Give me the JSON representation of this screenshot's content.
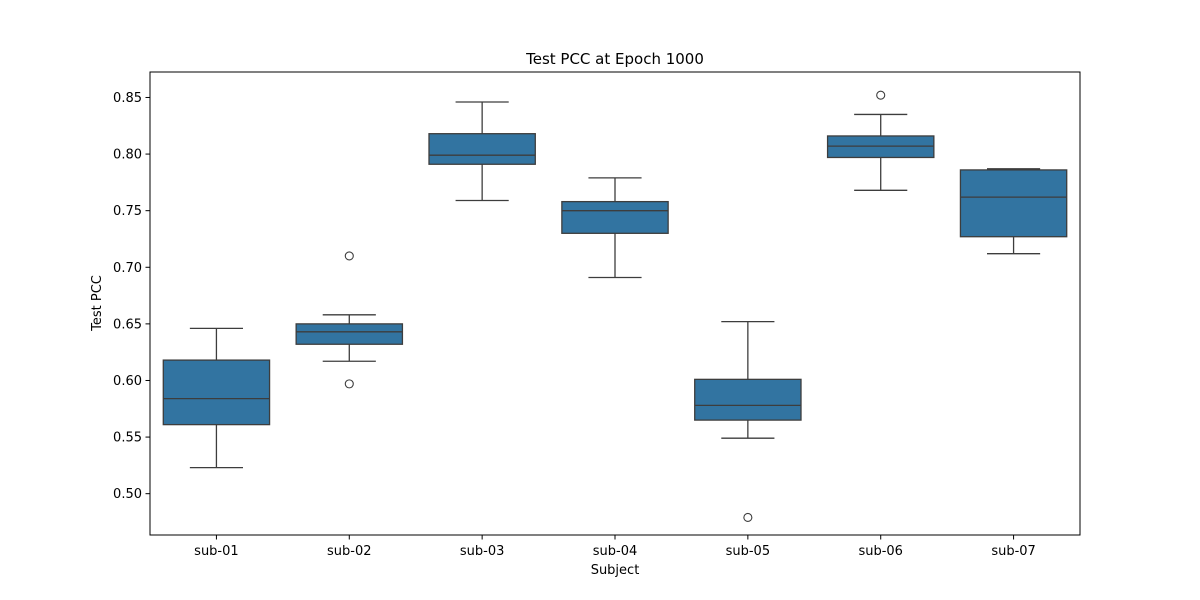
{
  "chart_data": {
    "type": "box",
    "title": "Test PCC at Epoch 1000",
    "xlabel": "Subject",
    "ylabel": "Test PCC",
    "ylim": [
      0.4635,
      0.8725
    ],
    "yticks": [
      0.5,
      0.55,
      0.6,
      0.65,
      0.7,
      0.75,
      0.8,
      0.85
    ],
    "ytick_labels": [
      "0.50",
      "0.55",
      "0.60",
      "0.65",
      "0.70",
      "0.75",
      "0.80",
      "0.85"
    ],
    "grid": false,
    "legend": "none",
    "box_color": "#3274a1",
    "line_color": "#3d3d3d",
    "categories": [
      "sub-01",
      "sub-02",
      "sub-03",
      "sub-04",
      "sub-05",
      "sub-06",
      "sub-07"
    ],
    "boxes": [
      {
        "category": "sub-01",
        "whisker_low": 0.523,
        "q1": 0.561,
        "median": 0.584,
        "q3": 0.618,
        "whisker_high": 0.646,
        "outliers": []
      },
      {
        "category": "sub-02",
        "whisker_low": 0.617,
        "q1": 0.632,
        "median": 0.643,
        "q3": 0.65,
        "whisker_high": 0.658,
        "outliers": [
          0.71,
          0.597
        ]
      },
      {
        "category": "sub-03",
        "whisker_low": 0.759,
        "q1": 0.791,
        "median": 0.799,
        "q3": 0.818,
        "whisker_high": 0.846,
        "outliers": []
      },
      {
        "category": "sub-04",
        "whisker_low": 0.691,
        "q1": 0.73,
        "median": 0.75,
        "q3": 0.758,
        "whisker_high": 0.779,
        "outliers": []
      },
      {
        "category": "sub-05",
        "whisker_low": 0.549,
        "q1": 0.565,
        "median": 0.578,
        "q3": 0.601,
        "whisker_high": 0.652,
        "outliers": [
          0.479
        ]
      },
      {
        "category": "sub-06",
        "whisker_low": 0.768,
        "q1": 0.797,
        "median": 0.807,
        "q3": 0.816,
        "whisker_high": 0.835,
        "outliers": [
          0.852
        ]
      },
      {
        "category": "sub-07",
        "whisker_low": 0.712,
        "q1": 0.727,
        "median": 0.762,
        "q3": 0.786,
        "whisker_high": 0.787,
        "outliers": []
      }
    ]
  }
}
